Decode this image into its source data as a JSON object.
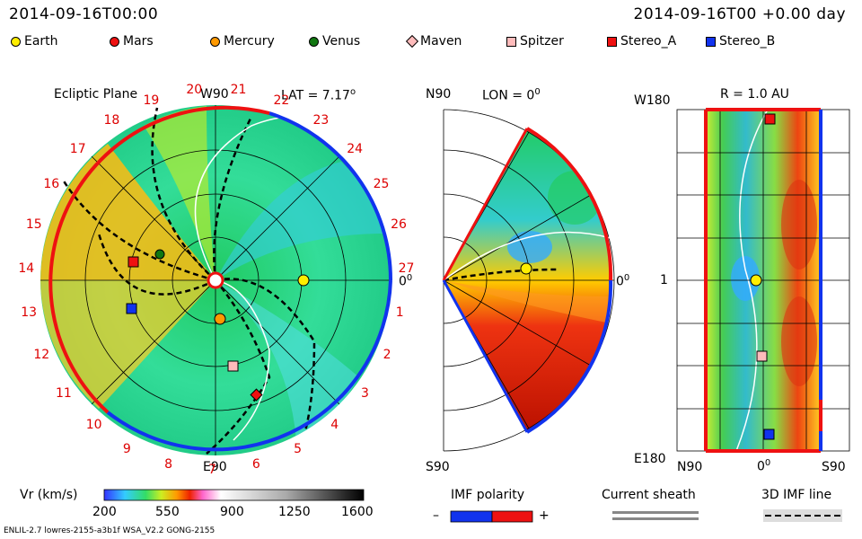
{
  "header": {
    "left_time": "2014-09-16T00:00",
    "right_time": "2014-09-16T00 +0.00 day"
  },
  "legend": [
    {
      "label": "Earth",
      "shape": "circle",
      "color": "#ffee00"
    },
    {
      "label": "Mars",
      "shape": "circle",
      "color": "#ee1111"
    },
    {
      "label": "Mercury",
      "shape": "circle",
      "color": "#ff9900"
    },
    {
      "label": "Venus",
      "shape": "circle",
      "color": "#117711"
    },
    {
      "label": "Maven",
      "shape": "diamond",
      "color": "#ffbbbb"
    },
    {
      "label": "Spitzer",
      "shape": "square",
      "color": "#ffbbbb"
    },
    {
      "label": "Stereo_A",
      "shape": "square",
      "color": "#ee1111"
    },
    {
      "label": "Stereo_B",
      "shape": "square",
      "color": "#1133ee"
    }
  ],
  "ecliptic": {
    "title": "Ecliptic Plane",
    "top_label": "W90",
    "bottom_label": "E90",
    "right_label": "0",
    "lat_label": "LAT = 7.17",
    "sectors": [
      "19",
      "20",
      "21",
      "22",
      "23",
      "24",
      "25",
      "26",
      "27",
      "1",
      "2",
      "3",
      "4",
      "5",
      "6",
      "7",
      "8",
      "9",
      "10",
      "11",
      "12",
      "13",
      "14",
      "15",
      "16",
      "17",
      "18"
    ]
  },
  "meridional": {
    "top_label": "N90",
    "bottom_label": "S90",
    "lon_label": "LON = 0",
    "right_label": "0"
  },
  "radial": {
    "title": "R = 1.0 AU",
    "top_label": "W180",
    "bottom_label": "E180",
    "mid_label": "1",
    "x_left": "N90",
    "x_mid": "0",
    "x_right": "S90"
  },
  "colorbar": {
    "label": "Vr (km/s)",
    "ticks": [
      "200",
      "550",
      "900",
      "1250",
      "1600"
    ]
  },
  "imf": {
    "label": "IMF polarity",
    "minus": "–",
    "plus": "+"
  },
  "current_sheath": {
    "label": "Current sheath"
  },
  "imf_3d": {
    "label": "3D IMF line"
  },
  "footer": {
    "model": "ENLIL-2.7 lowres-2155-a3b1f WSA_V2.2 GONG-2155"
  }
}
